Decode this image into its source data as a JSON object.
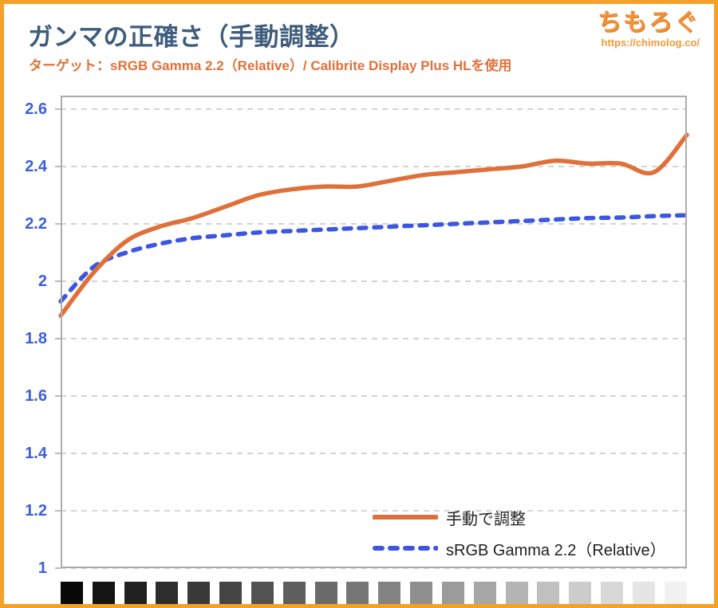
{
  "header": {
    "title": "ガンマの正確さ（手動調整）",
    "subtitle": "ターゲット：sRGB Gamma 2.2（Relative）/ Calibrite Display Plus HLを使用"
  },
  "logo": {
    "name": "ちもろぐ",
    "url": "https://chimolog.co/"
  },
  "colors": {
    "frame_border": "#F5A028",
    "title_text": "#3E5C7C",
    "subtitle_text": "#E2703A",
    "logo_orange": "#F0923A",
    "axis_label_blue": "#3B5FD9",
    "grid_gray": "#C9C9C9",
    "plot_border_gray": "#ACACAC",
    "legend_text": "#1F1F1F"
  },
  "chart_data": {
    "type": "line",
    "title": "ガンマの正確さ（手動調整）",
    "xlabel": "",
    "ylabel": "",
    "x_description": "grayscale steps from black to white (20 patches)",
    "ylim": [
      1,
      2.647
    ],
    "yticks": [
      2.6,
      2.4,
      2.2,
      2,
      1.8,
      1.6,
      1.4,
      1.2,
      1
    ],
    "grid": "horizontal-dashed",
    "legend_position": "inside-bottom-right",
    "series": [
      {
        "name": "手動で調整",
        "style": "solid",
        "color": "#E0703A",
        "values": [
          1.88,
          2.03,
          2.14,
          2.19,
          2.22,
          2.26,
          2.3,
          2.32,
          2.33,
          2.33,
          2.35,
          2.37,
          2.38,
          2.39,
          2.4,
          2.42,
          2.41,
          2.41,
          2.38,
          2.51
        ]
      },
      {
        "name": "sRGB Gamma 2.2（Relative）",
        "style": "dashed",
        "color": "#3B57E2",
        "values": [
          1.93,
          2.05,
          2.1,
          2.13,
          2.15,
          2.16,
          2.17,
          2.175,
          2.18,
          2.185,
          2.19,
          2.195,
          2.2,
          2.205,
          2.21,
          2.215,
          2.22,
          2.222,
          2.227,
          2.23
        ]
      }
    ],
    "x_swatch_grays": [
      "#080808",
      "#141414",
      "#212121",
      "#2d2d2d",
      "#393939",
      "#454545",
      "#525252",
      "#5e5e5e",
      "#6a6a6a",
      "#767676",
      "#838383",
      "#8f8f8f",
      "#9b9b9b",
      "#a7a7a7",
      "#b4b4b4",
      "#c0c0c0",
      "#cccccc",
      "#d8d8d8",
      "#e5e5e5",
      "#f1f1f1"
    ]
  }
}
